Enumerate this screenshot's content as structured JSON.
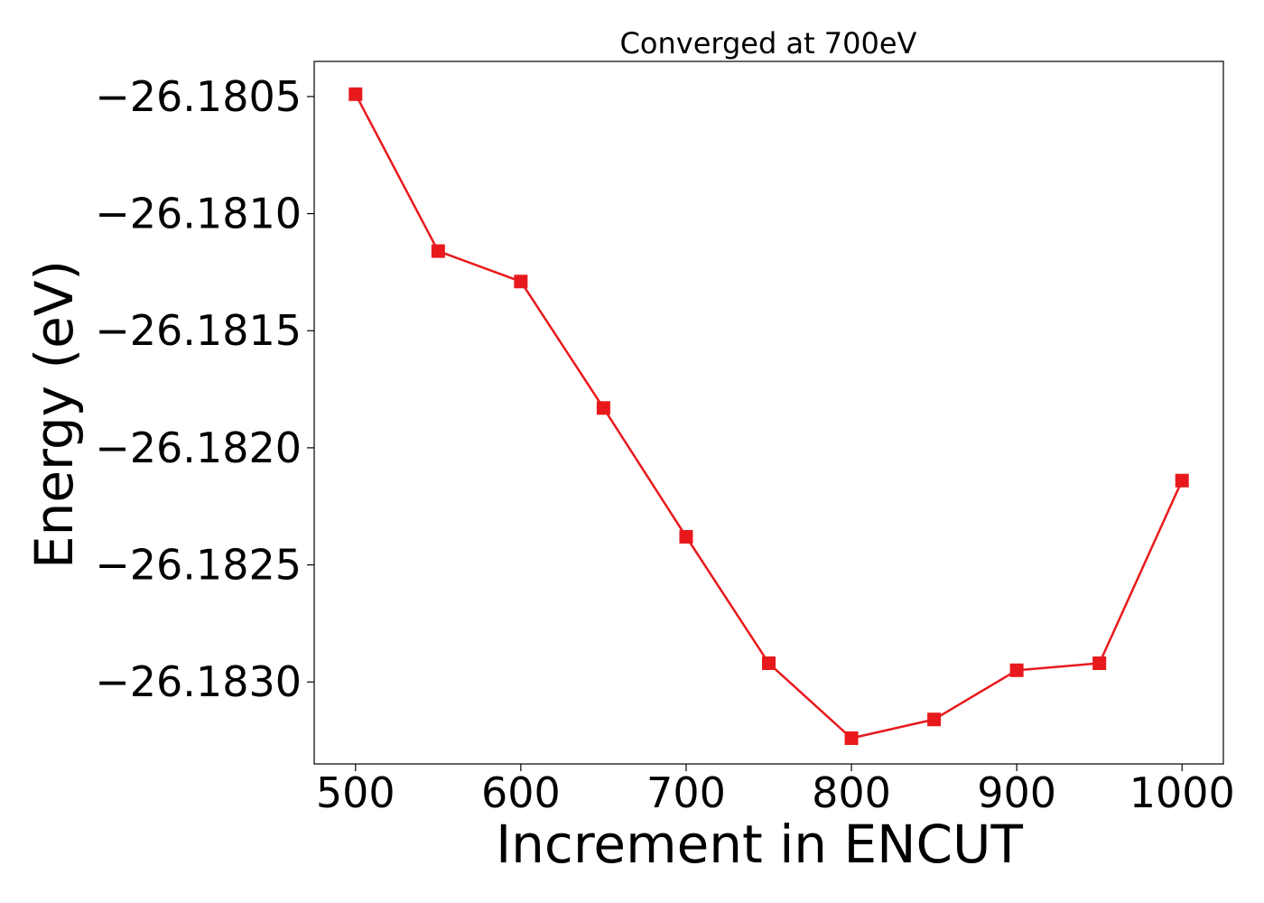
{
  "chart_data": {
    "type": "line",
    "title": "Converged at 700eV",
    "xlabel": "Increment in ENCUT",
    "ylabel": "Energy (eV)",
    "x": [
      500,
      550,
      600,
      650,
      700,
      750,
      800,
      850,
      900,
      950,
      1000
    ],
    "series": [
      {
        "values": [
          -26.18049,
          -26.18116,
          -26.18129,
          -26.18183,
          -26.18238,
          -26.18292,
          -26.18324,
          -26.18316,
          -26.18295,
          -26.18292,
          -26.18214
        ],
        "color": "#e8191c",
        "marker": "square"
      }
    ],
    "xlim": [
      475,
      1025
    ],
    "ylim": [
      -26.18335,
      -26.18035
    ],
    "xticks": [
      500,
      600,
      700,
      800,
      900,
      1000
    ],
    "xtick_labels": [
      "500",
      "600",
      "700",
      "800",
      "900",
      "1000"
    ],
    "yticks": [
      -26.1805,
      -26.181,
      -26.1815,
      -26.182,
      -26.1825,
      -26.183
    ],
    "ytick_labels": [
      "−26.1805",
      "−26.1810",
      "−26.1815",
      "−26.1820",
      "−26.1825",
      "−26.1830"
    ],
    "grid": false
  }
}
